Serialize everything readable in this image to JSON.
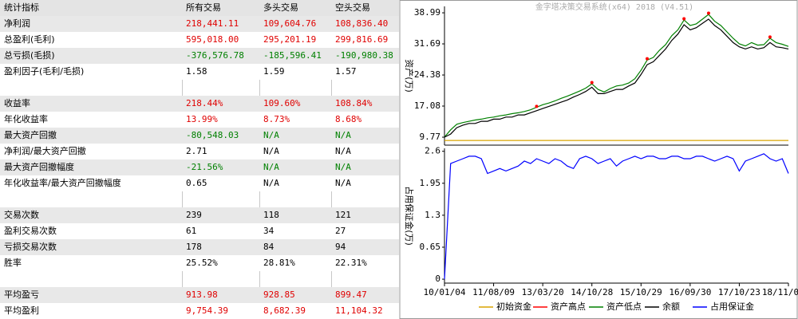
{
  "table": {
    "header": [
      "统计指标",
      "所有交易",
      "多头交易",
      "空头交易"
    ],
    "groups": [
      [
        {
          "cells": [
            "净利润",
            "218,441.11",
            "109,604.76",
            "108,836.40"
          ],
          "color": "#e00000"
        },
        {
          "cells": [
            "总盈利(毛利)",
            "595,018.00",
            "295,201.19",
            "299,816.69"
          ],
          "color": "#e00000"
        },
        {
          "cells": [
            "总亏损(毛损)",
            "-376,576.78",
            "-185,596.41",
            "-190,980.38"
          ],
          "color": "#008000"
        },
        {
          "cells": [
            "盈利因子(毛利/毛损)",
            "1.58",
            "1.59",
            "1.57"
          ],
          "color": "#000000"
        }
      ],
      [
        {
          "cells": [
            "收益率",
            "218.44%",
            "109.60%",
            "108.84%"
          ],
          "color": "#e00000"
        },
        {
          "cells": [
            "年化收益率",
            "13.99%",
            "8.73%",
            "8.68%"
          ],
          "color": "#e00000"
        },
        {
          "cells": [
            "最大资产回撤",
            "-80,548.03",
            "N/A",
            "N/A"
          ],
          "color": "#008000"
        },
        {
          "cells": [
            "净利润/最大资产回撤",
            "2.71",
            "N/A",
            "N/A"
          ],
          "color": "#000000"
        },
        {
          "cells": [
            "最大资产回撤幅度",
            "-21.56%",
            "N/A",
            "N/A"
          ],
          "color": "#008000"
        },
        {
          "cells": [
            "年化收益率/最大资产回撤幅度",
            "0.65",
            "N/A",
            "N/A"
          ],
          "color": "#000000"
        }
      ],
      [
        {
          "cells": [
            "交易次数",
            "239",
            "118",
            "121"
          ],
          "color": "#000000"
        },
        {
          "cells": [
            "盈利交易次数",
            "61",
            "34",
            "27"
          ],
          "color": "#000000"
        },
        {
          "cells": [
            "亏损交易次数",
            "178",
            "84",
            "94"
          ],
          "color": "#000000"
        },
        {
          "cells": [
            "胜率",
            "25.52%",
            "28.81%",
            "22.31%"
          ],
          "color": "#000000"
        }
      ],
      [
        {
          "cells": [
            "平均盈亏",
            "913.98",
            "928.85",
            "899.47"
          ],
          "color": "#e00000"
        },
        {
          "cells": [
            "平均盈利",
            "9,754.39",
            "8,682.39",
            "11,104.32"
          ],
          "color": "#e00000"
        }
      ]
    ]
  },
  "chart_data": [
    {
      "type": "line",
      "title": "金字塔决策交易系统(x64) 2018 (V4.51)",
      "y_label": "资产(万)",
      "xlim": [
        0,
        56
      ],
      "ylim": [
        7.9,
        40.5
      ],
      "yticks": [
        9.77,
        17.08,
        24.38,
        31.69,
        38.99
      ],
      "grid": false,
      "series": [
        {
          "name": "初始资金",
          "color": "#d9a400",
          "style": "line",
          "values": [
            9.0,
            9.0,
            9.0,
            9.0,
            9.0,
            9.0,
            9.0,
            9.0,
            9.0,
            9.0,
            9.0,
            9.0,
            9.0,
            9.0,
            9.0,
            9.0,
            9.0,
            9.0,
            9.0,
            9.0,
            9.0,
            9.0,
            9.0,
            9.0,
            9.0,
            9.0,
            9.0,
            9.0,
            9.0,
            9.0,
            9.0,
            9.0,
            9.0,
            9.0,
            9.0,
            9.0,
            9.0,
            9.0,
            9.0,
            9.0,
            9.0,
            9.0,
            9.0,
            9.0,
            9.0,
            9.0,
            9.0,
            9.0,
            9.0,
            9.0,
            9.0,
            9.0,
            9.0,
            9.0,
            9.0,
            9.0,
            9.0
          ]
        },
        {
          "name": "资产高点",
          "color": "#ff0000",
          "style": "dots",
          "values": [
            null,
            null,
            null,
            null,
            null,
            null,
            null,
            null,
            null,
            null,
            null,
            null,
            null,
            null,
            null,
            17.0,
            null,
            null,
            null,
            null,
            null,
            null,
            null,
            null,
            22.6,
            null,
            null,
            null,
            null,
            null,
            null,
            null,
            null,
            28.2,
            null,
            null,
            null,
            null,
            null,
            37.6,
            null,
            null,
            null,
            38.9,
            null,
            null,
            null,
            null,
            null,
            null,
            null,
            null,
            null,
            33.3,
            null,
            null,
            null
          ]
        },
        {
          "name": "资产低点",
          "color": "#008000",
          "style": "line",
          "values": [
            9.8,
            11.5,
            12.8,
            13.2,
            13.5,
            13.8,
            14.0,
            14.3,
            14.5,
            14.8,
            15.0,
            15.3,
            15.5,
            15.8,
            16.2,
            16.8,
            17.4,
            17.8,
            18.3,
            18.9,
            19.4,
            20.0,
            20.6,
            21.3,
            22.3,
            21.0,
            20.4,
            21.2,
            21.8,
            22.0,
            22.5,
            23.5,
            25.5,
            27.9,
            28.5,
            30.2,
            31.5,
            33.6,
            35.0,
            37.3,
            36.0,
            36.4,
            37.5,
            38.6,
            37.0,
            36.0,
            34.5,
            33.0,
            31.7,
            31.2,
            32.0,
            31.4,
            31.5,
            33.0,
            32.0,
            31.6,
            31.1
          ]
        },
        {
          "name": "余额",
          "color": "#000000",
          "style": "line",
          "values": [
            9.77,
            10.5,
            12.0,
            12.6,
            13.0,
            13.0,
            13.5,
            13.5,
            14.0,
            14.0,
            14.5,
            14.5,
            15.0,
            15.0,
            15.5,
            16.0,
            16.5,
            17.0,
            17.5,
            18.0,
            18.5,
            19.2,
            19.8,
            20.5,
            21.5,
            20.0,
            20.0,
            20.5,
            21.0,
            21.0,
            21.8,
            22.5,
            24.5,
            26.8,
            27.5,
            29.0,
            30.5,
            32.5,
            34.0,
            36.2,
            35.0,
            35.5,
            36.5,
            37.5,
            36.0,
            35.0,
            33.5,
            32.0,
            31.0,
            30.5,
            31.0,
            30.5,
            30.8,
            32.0,
            31.0,
            30.8,
            30.5
          ]
        }
      ]
    },
    {
      "type": "line",
      "y_label": "占用保证金(万)",
      "xlim": [
        0,
        56
      ],
      "ylim": [
        -0.08,
        2.66
      ],
      "yticks": [
        0.0,
        0.65,
        1.3,
        1.95,
        2.6
      ],
      "grid": false,
      "xticks": [
        {
          "value": 0,
          "label": "10/01/04"
        },
        {
          "value": 8,
          "label": "11/08/09"
        },
        {
          "value": 16,
          "label": "13/03/20"
        },
        {
          "value": 24,
          "label": "14/10/28"
        },
        {
          "value": 32,
          "label": "15/10/29"
        },
        {
          "value": 40,
          "label": "16/09/30"
        },
        {
          "value": 48,
          "label": "17/10/23"
        },
        {
          "value": 56,
          "label": "18/11/0"
        }
      ],
      "series": [
        {
          "name": "占用保证金",
          "color": "#0000ff",
          "style": "line",
          "values": [
            0.0,
            2.35,
            2.4,
            2.45,
            2.5,
            2.5,
            2.45,
            2.15,
            2.2,
            2.25,
            2.2,
            2.25,
            2.3,
            2.4,
            2.35,
            2.45,
            2.4,
            2.35,
            2.45,
            2.4,
            2.3,
            2.25,
            2.45,
            2.5,
            2.45,
            2.35,
            2.4,
            2.45,
            2.3,
            2.4,
            2.45,
            2.5,
            2.45,
            2.5,
            2.5,
            2.45,
            2.45,
            2.5,
            2.5,
            2.45,
            2.45,
            2.5,
            2.5,
            2.45,
            2.4,
            2.45,
            2.5,
            2.45,
            2.2,
            2.4,
            2.45,
            2.5,
            2.55,
            2.45,
            2.4,
            2.45,
            2.15
          ]
        }
      ]
    }
  ]
}
